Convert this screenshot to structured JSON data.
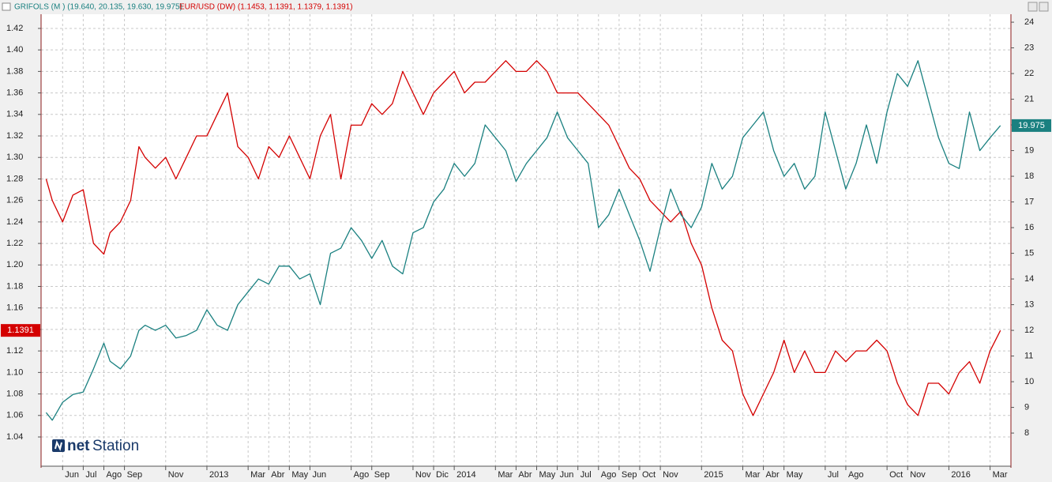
{
  "chart_data": {
    "type": "line",
    "x": [
      4.2,
      4.5,
      5,
      5.5,
      6,
      6.5,
      7,
      7.3,
      7.8,
      8.3,
      8.7,
      9,
      9.5,
      10,
      10.5,
      11,
      11.5,
      12,
      12.5,
      13,
      13.5,
      14,
      14.5,
      15,
      15.5,
      16,
      16.5,
      17,
      17.5,
      18,
      18.5,
      19,
      19.5,
      20,
      20.5,
      21,
      21.5,
      22,
      22.5,
      23,
      23.5,
      24,
      24.5,
      25,
      25.5,
      26,
      26.5,
      27,
      27.5,
      28,
      28.5,
      29,
      29.5,
      30,
      30.5,
      31,
      31.5,
      32,
      32.5,
      33,
      33.5,
      34,
      34.5,
      35,
      35.5,
      36,
      36.5,
      37,
      37.5,
      38,
      38.5,
      39,
      39.5,
      40,
      40.5,
      41,
      41.5,
      42,
      42.5,
      43,
      43.5,
      44,
      44.5,
      45,
      45.5,
      46,
      46.5,
      47,
      47.5,
      48,
      48.5,
      49,
      49.5,
      50,
      50.5
    ],
    "series": [
      {
        "name": "EUR/USD (DW) (1.1453, 1.1391, 1.1379, 1.1391)",
        "color": "#d40000",
        "axis": "y",
        "values": [
          1.28,
          1.26,
          1.24,
          1.265,
          1.27,
          1.22,
          1.21,
          1.23,
          1.24,
          1.26,
          1.31,
          1.3,
          1.29,
          1.3,
          1.28,
          1.3,
          1.32,
          1.32,
          1.34,
          1.36,
          1.31,
          1.3,
          1.28,
          1.31,
          1.3,
          1.32,
          1.3,
          1.28,
          1.32,
          1.34,
          1.28,
          1.33,
          1.33,
          1.35,
          1.34,
          1.35,
          1.38,
          1.36,
          1.34,
          1.36,
          1.37,
          1.38,
          1.36,
          1.37,
          1.37,
          1.38,
          1.39,
          1.38,
          1.38,
          1.39,
          1.38,
          1.36,
          1.36,
          1.36,
          1.35,
          1.34,
          1.33,
          1.31,
          1.29,
          1.28,
          1.26,
          1.25,
          1.24,
          1.25,
          1.22,
          1.2,
          1.16,
          1.13,
          1.12,
          1.08,
          1.06,
          1.08,
          1.1,
          1.13,
          1.1,
          1.12,
          1.1,
          1.1,
          1.12,
          1.11,
          1.12,
          1.12,
          1.13,
          1.12,
          1.09,
          1.07,
          1.06,
          1.09,
          1.09,
          1.08,
          1.1,
          1.11,
          1.09,
          1.12,
          1.1391
        ]
      },
      {
        "name": "GRIFOLS (M ) (19.640, 20.135, 19.630, 19.975)",
        "color": "#1a8080",
        "axis": "y2",
        "values": [
          8.8,
          8.5,
          9.2,
          9.5,
          9.6,
          10.5,
          11.5,
          10.8,
          10.5,
          11.0,
          12.0,
          12.2,
          12.0,
          12.2,
          11.7,
          11.8,
          12.0,
          12.8,
          12.2,
          12.0,
          13.0,
          13.5,
          14.0,
          13.8,
          14.5,
          14.5,
          14.0,
          14.2,
          13.0,
          15.0,
          15.2,
          16.0,
          15.5,
          14.8,
          15.5,
          14.5,
          14.2,
          15.8,
          16.0,
          17.0,
          17.5,
          18.5,
          18.0,
          18.5,
          20.0,
          19.5,
          19.0,
          17.8,
          18.5,
          19.0,
          19.5,
          20.5,
          19.5,
          19.0,
          18.5,
          16.0,
          16.5,
          17.5,
          16.5,
          15.5,
          14.3,
          16.0,
          17.5,
          16.5,
          16.0,
          16.8,
          18.5,
          17.5,
          18.0,
          19.5,
          20.0,
          20.5,
          19.0,
          18.0,
          18.5,
          17.5,
          18.0,
          20.5,
          19.0,
          17.5,
          18.5,
          20.0,
          18.5,
          20.5,
          22.0,
          21.5,
          22.5,
          21.0,
          19.5,
          18.5,
          18.3,
          20.5,
          19.0,
          19.5,
          19.975
        ]
      }
    ],
    "xlim": [
      3.954,
      51.011
    ],
    "xticks": [
      {
        "value": 5,
        "label": "Jun"
      },
      {
        "value": 6,
        "label": "Jul"
      },
      {
        "value": 7,
        "label": "Ago"
      },
      {
        "value": 8,
        "label": "Sep"
      },
      {
        "value": 10,
        "label": "Nov"
      },
      {
        "value": 12,
        "label": "2013"
      },
      {
        "value": 14,
        "label": "Mar"
      },
      {
        "value": 15,
        "label": "Abr"
      },
      {
        "value": 16,
        "label": "May"
      },
      {
        "value": 17,
        "label": "Jun"
      },
      {
        "value": 19,
        "label": "Ago"
      },
      {
        "value": 20,
        "label": "Sep"
      },
      {
        "value": 22,
        "label": "Nov"
      },
      {
        "value": 23,
        "label": "Dic"
      },
      {
        "value": 24,
        "label": "2014"
      },
      {
        "value": 26,
        "label": "Mar"
      },
      {
        "value": 27,
        "label": "Abr"
      },
      {
        "value": 28,
        "label": "May"
      },
      {
        "value": 29,
        "label": "Jun"
      },
      {
        "value": 30,
        "label": "Jul"
      },
      {
        "value": 31,
        "label": "Ago"
      },
      {
        "value": 32,
        "label": "Sep"
      },
      {
        "value": 33,
        "label": "Oct"
      },
      {
        "value": 34,
        "label": "Nov"
      },
      {
        "value": 36,
        "label": "2015"
      },
      {
        "value": 38,
        "label": "Mar"
      },
      {
        "value": 39,
        "label": "Abr"
      },
      {
        "value": 40,
        "label": "May"
      },
      {
        "value": 42,
        "label": "Jul"
      },
      {
        "value": 43,
        "label": "Ago"
      },
      {
        "value": 45,
        "label": "Oct"
      },
      {
        "value": 46,
        "label": "Nov"
      },
      {
        "value": 48,
        "label": "2016"
      },
      {
        "value": 50,
        "label": "Mar"
      }
    ],
    "ylim": [
      1.0128,
      1.4332
    ],
    "yticks": [
      {
        "value": 1.04,
        "label": "1.04"
      },
      {
        "value": 1.06,
        "label": "1.06"
      },
      {
        "value": 1.08,
        "label": "1.08"
      },
      {
        "value": 1.1,
        "label": "1.10"
      },
      {
        "value": 1.12,
        "label": "1.12"
      },
      {
        "value": 1.14,
        "label": "1.14"
      },
      {
        "value": 1.16,
        "label": "1.16"
      },
      {
        "value": 1.18,
        "label": "1.18"
      },
      {
        "value": 1.2,
        "label": "1.20"
      },
      {
        "value": 1.22,
        "label": "1.22"
      },
      {
        "value": 1.24,
        "label": "1.24"
      },
      {
        "value": 1.26,
        "label": "1.26"
      },
      {
        "value": 1.28,
        "label": "1.28"
      },
      {
        "value": 1.3,
        "label": "1.30"
      },
      {
        "value": 1.32,
        "label": "1.32"
      },
      {
        "value": 1.34,
        "label": "1.34"
      },
      {
        "value": 1.36,
        "label": "1.36"
      },
      {
        "value": 1.38,
        "label": "1.38"
      },
      {
        "value": 1.4,
        "label": "1.40"
      },
      {
        "value": 1.42,
        "label": "1.42"
      }
    ],
    "y2lim": [
      6.71,
      24.31
    ],
    "y2ticks": [
      8,
      9,
      10,
      11,
      12,
      13,
      14,
      15,
      16,
      17,
      18,
      19,
      20,
      21,
      22,
      23,
      24
    ],
    "grid": true,
    "watermark": [
      "net",
      "Station"
    ]
  }
}
